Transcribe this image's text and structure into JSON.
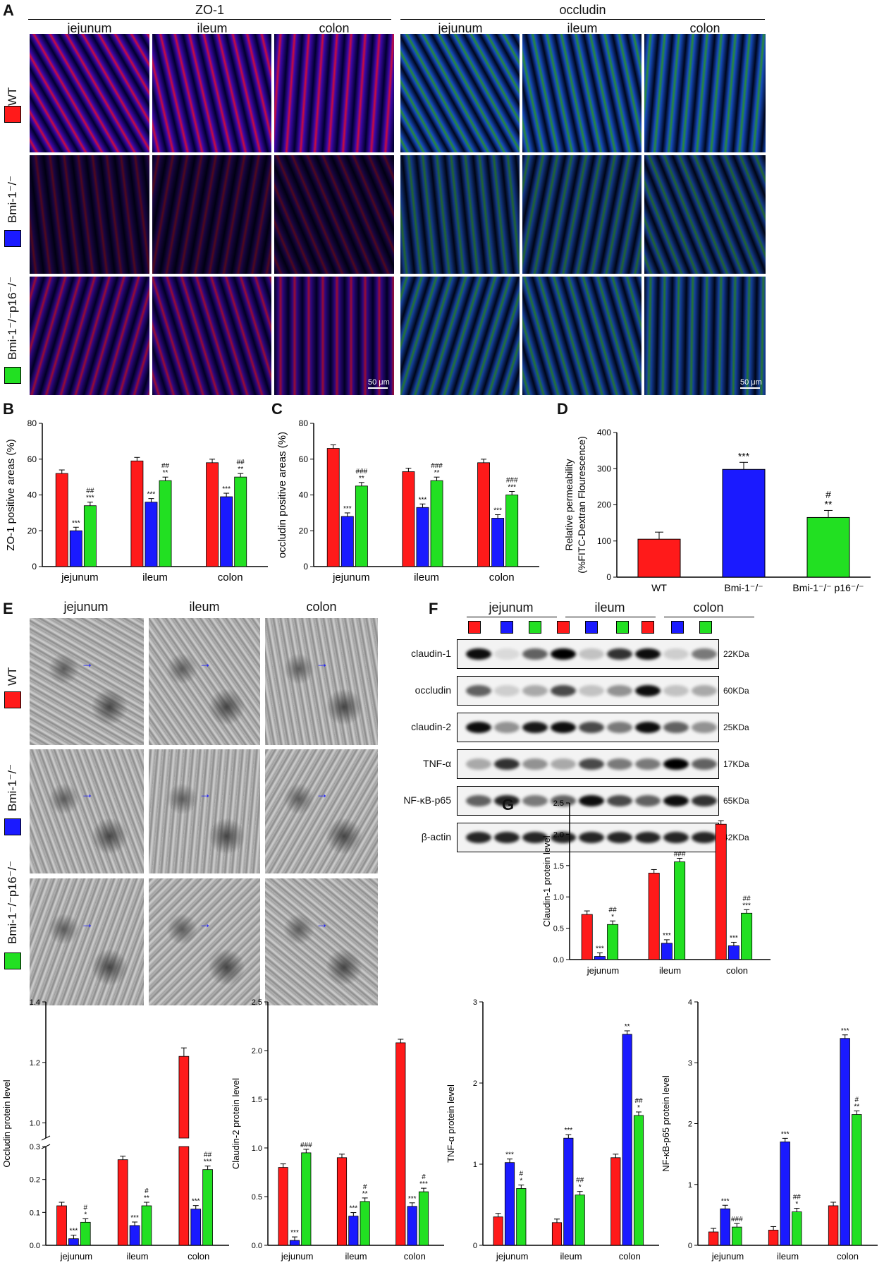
{
  "panels": {
    "A": "A",
    "B": "B",
    "C": "C",
    "D": "D",
    "E": "E",
    "F": "F",
    "G": "G"
  },
  "panelA": {
    "group1": "ZO-1",
    "group2": "occludin",
    "cols": [
      "jejunum",
      "ileum",
      "colon",
      "jejunum",
      "ileum",
      "colon"
    ],
    "rows": [
      "WT",
      "Bmi-1⁻/⁻",
      "Bmi-1⁻/⁻p16⁻/⁻"
    ],
    "scale": "50 μm"
  },
  "panelE": {
    "cols": [
      "jejunum",
      "ileum",
      "colon"
    ],
    "rows": [
      "WT",
      "Bmi-1⁻/⁻",
      "Bmi-1⁻/⁻p16⁻/⁻"
    ]
  },
  "panelF": {
    "groups": [
      "jejunum",
      "ileum",
      "colon"
    ],
    "proteins": [
      "claudin-1",
      "occludin",
      "claudin-2",
      "TNF-α",
      "NF-κB-p65",
      "β-actin"
    ],
    "kda": [
      "22KDa",
      "60KDa",
      "25KDa",
      "17KDa",
      "65KDa",
      "42KDa"
    ]
  },
  "colors": {
    "wt": "#ff1a1a",
    "bmi": "#1a1aff",
    "dko": "#22e022"
  },
  "chart_data": [
    {
      "id": "B",
      "type": "bar",
      "categories": [
        "jejunum",
        "ileum",
        "colon"
      ],
      "ylabel": "ZO-1 positive areas (%)",
      "ylim": [
        0,
        80
      ],
      "yticks": [
        0,
        20,
        40,
        60,
        80
      ],
      "series": [
        {
          "values": [
            52,
            59,
            58
          ]
        },
        {
          "values": [
            20,
            36,
            39
          ]
        },
        {
          "values": [
            34,
            48,
            50
          ]
        }
      ],
      "annotations": [
        [
          "",
          "***",
          "##\n***"
        ],
        [
          "",
          "***",
          "##\n**"
        ],
        [
          "",
          "***",
          "##\n**"
        ]
      ]
    },
    {
      "id": "C",
      "type": "bar",
      "categories": [
        "jejunum",
        "ileum",
        "colon"
      ],
      "ylabel": "occludin positive areas (%)",
      "ylim": [
        0,
        80
      ],
      "yticks": [
        0,
        20,
        40,
        60,
        80
      ],
      "series": [
        {
          "values": [
            66,
            53,
            58
          ]
        },
        {
          "values": [
            28,
            33,
            27
          ]
        },
        {
          "values": [
            45,
            48,
            40
          ]
        }
      ],
      "annotations": [
        [
          "",
          "***",
          "###\n**"
        ],
        [
          "",
          "***",
          "###\n**"
        ],
        [
          "",
          "***",
          "###\n***"
        ]
      ]
    },
    {
      "id": "D",
      "type": "bar",
      "categories": [
        "WT",
        "Bmi-1⁻/⁻",
        "Bmi-1⁻/⁻ p16⁻/⁻"
      ],
      "ylabel": "Relative permeability",
      "ylabel2": "(%FITC-Dextran Flourescence)",
      "ylim": [
        0,
        400
      ],
      "yticks": [
        0,
        100,
        200,
        300,
        400
      ],
      "values": [
        105,
        298,
        165
      ],
      "annotations": [
        "",
        "***",
        "#\n**"
      ]
    },
    {
      "id": "G1",
      "type": "bar",
      "categories": [
        "jejunum",
        "ileum",
        "colon"
      ],
      "ylabel": "Claudin-1 protein level",
      "ylim": [
        0,
        2.5
      ],
      "yticks": [
        0.0,
        0.5,
        1.0,
        1.5,
        2.0,
        2.5
      ],
      "series": [
        {
          "values": [
            0.72,
            1.38,
            2.16
          ]
        },
        {
          "values": [
            0.05,
            0.26,
            0.22
          ]
        },
        {
          "values": [
            0.56,
            1.56,
            0.74
          ]
        }
      ],
      "annotations": [
        [
          "",
          "***",
          "##\n*"
        ],
        [
          "",
          "***",
          "###"
        ],
        [
          "",
          "***",
          "##\n***"
        ]
      ]
    },
    {
      "id": "G2",
      "type": "bar",
      "categories": [
        "jejunum",
        "ileum",
        "colon"
      ],
      "ylabel": "Occludin protein level",
      "broken_axis": true,
      "ylim": [
        0,
        1.4
      ],
      "yticks": [
        0.0,
        0.1,
        0.2,
        0.3,
        1.0,
        1.2,
        1.4
      ],
      "series": [
        {
          "values": [
            0.12,
            0.26,
            1.22
          ]
        },
        {
          "values": [
            0.02,
            0.06,
            0.11
          ]
        },
        {
          "values": [
            0.07,
            0.12,
            0.23
          ]
        }
      ],
      "annotations": [
        [
          "",
          "***",
          "#\n*"
        ],
        [
          "",
          "***",
          "#\n**"
        ],
        [
          "",
          "***",
          "##\n***"
        ]
      ]
    },
    {
      "id": "G3",
      "type": "bar",
      "categories": [
        "jejunum",
        "ileum",
        "colon"
      ],
      "ylabel": "Claudin-2 protein level",
      "ylim": [
        0,
        2.5
      ],
      "yticks": [
        0.0,
        0.5,
        1.0,
        1.5,
        2.0,
        2.5
      ],
      "series": [
        {
          "values": [
            0.8,
            0.9,
            2.08
          ]
        },
        {
          "values": [
            0.05,
            0.3,
            0.4
          ]
        },
        {
          "values": [
            0.95,
            0.45,
            0.55
          ]
        }
      ],
      "annotations": [
        [
          "",
          "***",
          "###"
        ],
        [
          "",
          "***",
          "#\n**"
        ],
        [
          "",
          "***",
          "#\n***"
        ]
      ]
    },
    {
      "id": "G4",
      "type": "bar",
      "categories": [
        "jejunum",
        "ileum",
        "colon"
      ],
      "ylabel": "TNF-α protein level",
      "ylim": [
        0,
        3
      ],
      "yticks": [
        0,
        1,
        2,
        3
      ],
      "series": [
        {
          "values": [
            0.35,
            0.28,
            1.08
          ]
        },
        {
          "values": [
            1.02,
            1.32,
            2.6
          ]
        },
        {
          "values": [
            0.7,
            0.62,
            1.6
          ]
        }
      ],
      "annotations": [
        [
          "",
          "***",
          "#\n*"
        ],
        [
          "",
          "***",
          "##\n*"
        ],
        [
          "",
          "**",
          "##\n*"
        ]
      ]
    },
    {
      "id": "G5",
      "type": "bar",
      "categories": [
        "jejunum",
        "ileum",
        "colon"
      ],
      "ylabel": "NF-κB-p65 protein level",
      "ylim": [
        0,
        4
      ],
      "yticks": [
        0,
        1,
        2,
        3,
        4
      ],
      "series": [
        {
          "values": [
            0.22,
            0.25,
            0.65
          ]
        },
        {
          "values": [
            0.6,
            1.7,
            3.4
          ]
        },
        {
          "values": [
            0.3,
            0.55,
            2.15
          ]
        }
      ],
      "annotations": [
        [
          "",
          "***",
          "###"
        ],
        [
          "",
          "***",
          "##\n*"
        ],
        [
          "",
          "***",
          "#\n**"
        ]
      ]
    }
  ]
}
